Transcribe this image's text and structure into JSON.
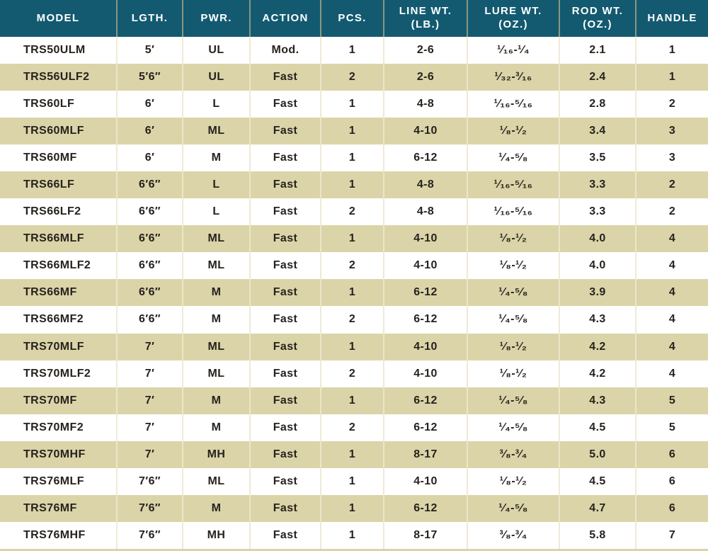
{
  "chart_data": {
    "type": "table",
    "columns": [
      "MODEL",
      "LGTH.",
      "PWR.",
      "ACTION",
      "PCS.",
      "LINE WT.\n(LB.)",
      "LURE WT.\n(OZ.)",
      "ROD WT.\n(OZ.)",
      "HANDLE"
    ],
    "rows": [
      [
        "TRS50ULM",
        "5′",
        "UL",
        "Mod.",
        "1",
        "2-6",
        "¹⁄₁₆-¹⁄₄",
        "2.1",
        "1"
      ],
      [
        "TRS56ULF2",
        "5′6″",
        "UL",
        "Fast",
        "2",
        "2-6",
        "¹⁄₃₂-³⁄₁₆",
        "2.4",
        "1"
      ],
      [
        "TRS60LF",
        "6′",
        "L",
        "Fast",
        "1",
        "4-8",
        "¹⁄₁₆-⁵⁄₁₆",
        "2.8",
        "2"
      ],
      [
        "TRS60MLF",
        "6′",
        "ML",
        "Fast",
        "1",
        "4-10",
        "¹⁄₈-¹⁄₂",
        "3.4",
        "3"
      ],
      [
        "TRS60MF",
        "6′",
        "M",
        "Fast",
        "1",
        "6-12",
        "¹⁄₄-⁵⁄₈",
        "3.5",
        "3"
      ],
      [
        "TRS66LF",
        "6′6″",
        "L",
        "Fast",
        "1",
        "4-8",
        "¹⁄₁₆-⁵⁄₁₆",
        "3.3",
        "2"
      ],
      [
        "TRS66LF2",
        "6′6″",
        "L",
        "Fast",
        "2",
        "4-8",
        "¹⁄₁₆-⁵⁄₁₆",
        "3.3",
        "2"
      ],
      [
        "TRS66MLF",
        "6′6″",
        "ML",
        "Fast",
        "1",
        "4-10",
        "¹⁄₈-¹⁄₂",
        "4.0",
        "4"
      ],
      [
        "TRS66MLF2",
        "6′6″",
        "ML",
        "Fast",
        "2",
        "4-10",
        "¹⁄₈-¹⁄₂",
        "4.0",
        "4"
      ],
      [
        "TRS66MF",
        "6′6″",
        "M",
        "Fast",
        "1",
        "6-12",
        "¹⁄₄-⁵⁄₈",
        "3.9",
        "4"
      ],
      [
        "TRS66MF2",
        "6′6″",
        "M",
        "Fast",
        "2",
        "6-12",
        "¹⁄₄-⁵⁄₈",
        "4.3",
        "4"
      ],
      [
        "TRS70MLF",
        "7′",
        "ML",
        "Fast",
        "1",
        "4-10",
        "¹⁄₈-¹⁄₂",
        "4.2",
        "4"
      ],
      [
        "TRS70MLF2",
        "7′",
        "ML",
        "Fast",
        "2",
        "4-10",
        "¹⁄₈-¹⁄₂",
        "4.2",
        "4"
      ],
      [
        "TRS70MF",
        "7′",
        "M",
        "Fast",
        "1",
        "6-12",
        "¹⁄₄-⁵⁄₈",
        "4.3",
        "5"
      ],
      [
        "TRS70MF2",
        "7′",
        "M",
        "Fast",
        "2",
        "6-12",
        "¹⁄₄-⁵⁄₈",
        "4.5",
        "5"
      ],
      [
        "TRS70MHF",
        "7′",
        "MH",
        "Fast",
        "1",
        "8-17",
        "³⁄₈-³⁄₄",
        "5.0",
        "6"
      ],
      [
        "TRS76MLF",
        "7′6″",
        "ML",
        "Fast",
        "1",
        "4-10",
        "¹⁄₈-¹⁄₂",
        "4.5",
        "6"
      ],
      [
        "TRS76MF",
        "7′6″",
        "M",
        "Fast",
        "1",
        "6-12",
        "¹⁄₄-⁵⁄₈",
        "4.7",
        "6"
      ],
      [
        "TRS76MHF",
        "7′6″",
        "MH",
        "Fast",
        "1",
        "8-17",
        "³⁄₈-³⁄₄",
        "5.8",
        "7"
      ]
    ]
  },
  "colors": {
    "header_bg": "#135a70",
    "header_text": "#ffffff",
    "header_divider": "#8a9781",
    "row_bg": "#ffffff",
    "row_alt_bg": "#dbd4a8",
    "body_divider": "#f0ead4",
    "body_text": "#26221e"
  }
}
